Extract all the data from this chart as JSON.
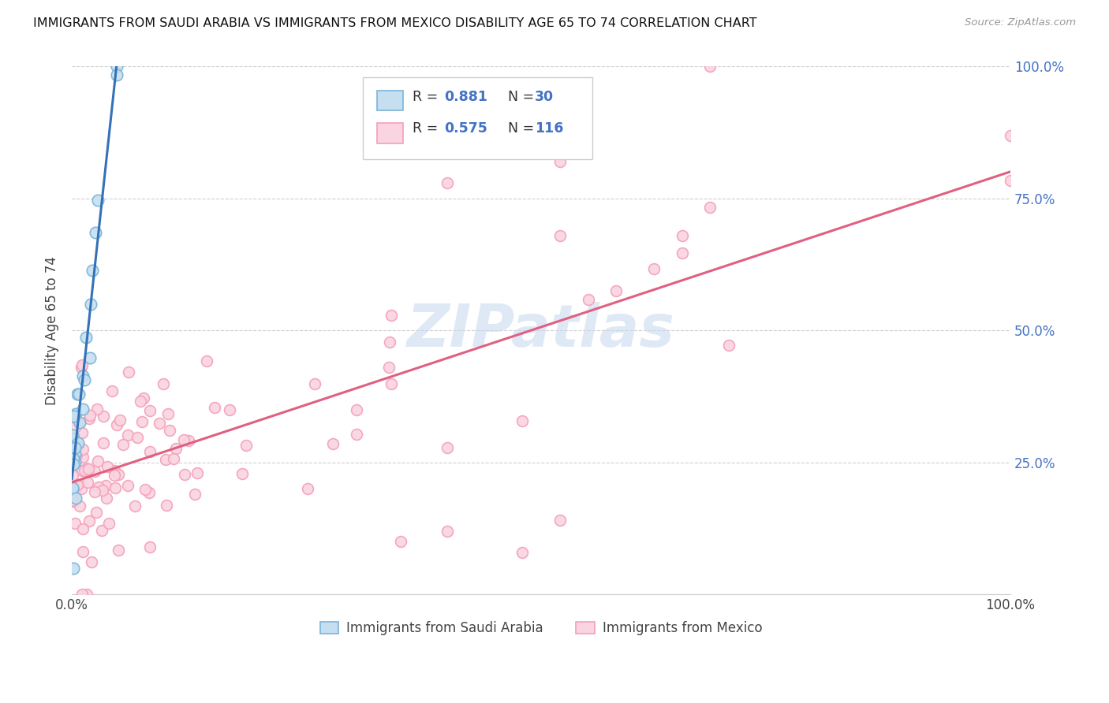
{
  "title": "IMMIGRANTS FROM SAUDI ARABIA VS IMMIGRANTS FROM MEXICO DISABILITY AGE 65 TO 74 CORRELATION CHART",
  "source": "Source: ZipAtlas.com",
  "ylabel": "Disability Age 65 to 74",
  "saudi_color": "#7ab4d8",
  "saudi_fill": "#c5dff0",
  "mexico_color": "#f4a0b8",
  "mexico_fill": "#fad4e0",
  "trend_saudi_color": "#3471b8",
  "trend_mexico_color": "#e06080",
  "legend_label_saudi": "Immigrants from Saudi Arabia",
  "legend_label_mexico": "Immigrants from Mexico",
  "watermark_text": "ZIPatlas",
  "watermark_color": "#c5d8ef",
  "R_saudi": 0.881,
  "N_saudi": 30,
  "R_mexico": 0.575,
  "N_mexico": 116
}
